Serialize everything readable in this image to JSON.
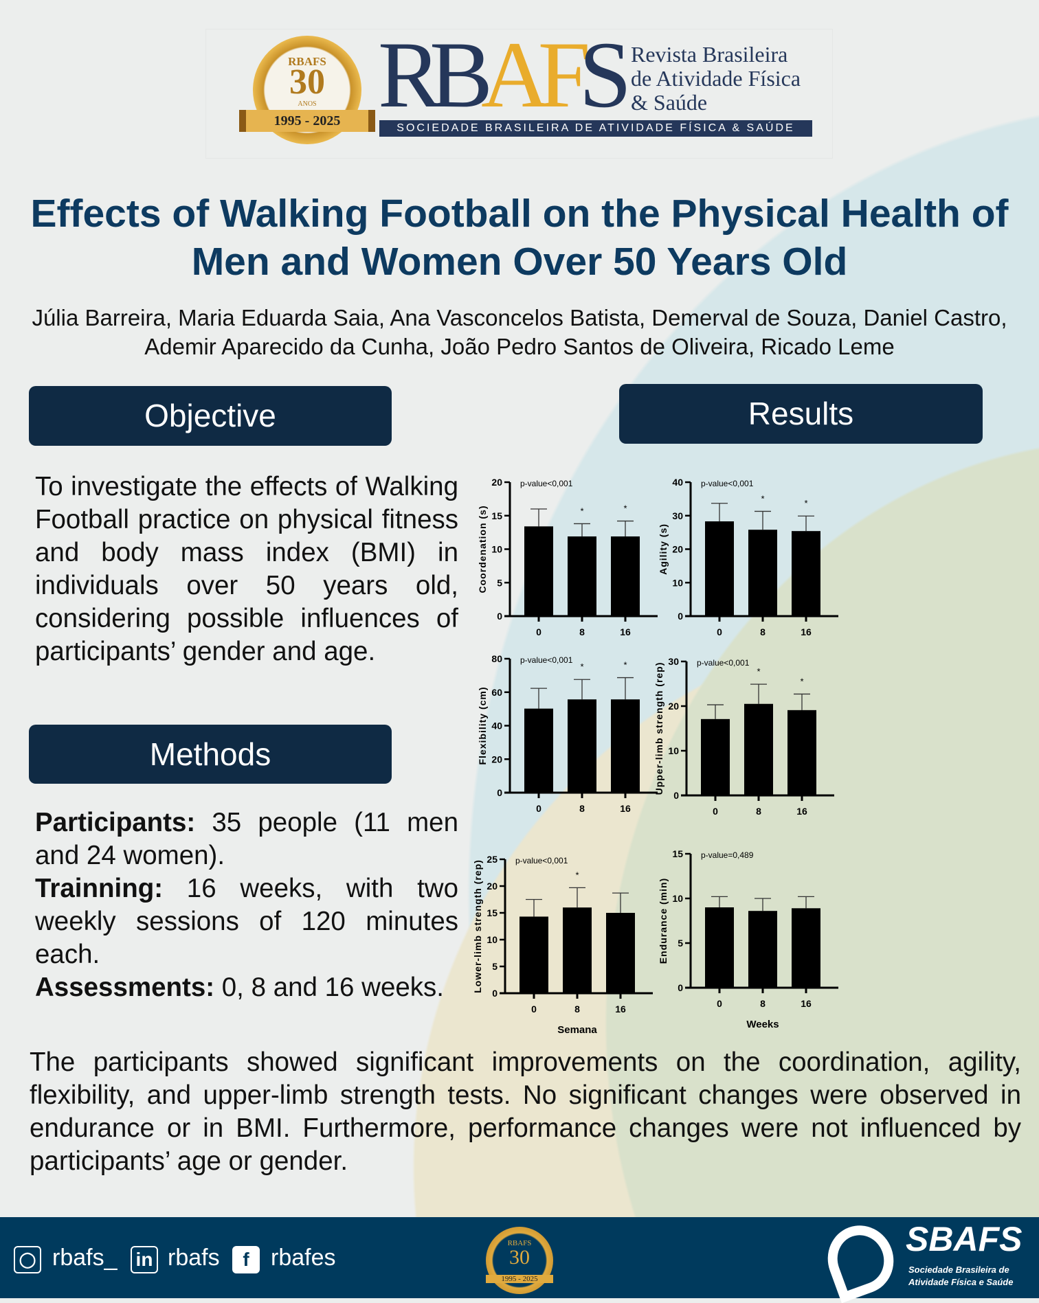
{
  "header": {
    "seal_top": "RBAFS",
    "seal_number": "30",
    "seal_sub": "ANOS",
    "seal_years": "1995 - 2025",
    "brand_r_b": "RB",
    "brand_af": "AF",
    "brand_s": "S",
    "brand_sub_lines": [
      "Revista Brasileira",
      "de Atividade Física",
      "& Saúde"
    ],
    "banner": "SOCIEDADE BRASILEIRA DE ATIVIDADE FÍSICA & SAÚDE"
  },
  "title": "Effects of Walking Football on the Physical Health of Men and Women Over 50 Years Old",
  "authors": "Júlia Barreira, Maria Eduarda Saia, Ana Vasconcelos Batista, Demerval de Souza, Daniel Castro, Ademir Aparecido da Cunha, João Pedro Santos de Oliveira, Ricado Leme",
  "objective": {
    "heading": "Objective",
    "text": "To investigate the effects of Walking Football practice on physical fitness and body mass index (BMI) in individuals over 50 years old, considering possible influences of participants’ gender and age."
  },
  "methods": {
    "heading": "Methods",
    "items": [
      {
        "label": "Participants:",
        "text": " 35 people (11 men and 24 women)."
      },
      {
        "label": "Trainning:",
        "text": " 16 weeks, with two weekly sessions of 120 minutes each."
      },
      {
        "label": "Assessments:",
        "text": " 0, 8 and 16 weeks."
      }
    ]
  },
  "results": {
    "heading": "Results"
  },
  "conclusion": "The participants showed significant improvements on the coordination, agility, flexibility, and upper-limb strength tests. No significant changes were observed in endurance or in BMI. Furthermore, performance changes were not influenced by participants’ age or gender.",
  "chart_data": [
    {
      "type": "bar",
      "ylabel": "Coordenation (s)",
      "xlabel": "",
      "annotation": "p-value<0,001",
      "categories": [
        "0",
        "8",
        "16"
      ],
      "values": [
        13.4,
        11.9,
        11.9
      ],
      "error_upper": [
        16.0,
        13.8,
        14.2
      ],
      "significant": [
        false,
        true,
        true
      ],
      "ylim": [
        0,
        20
      ],
      "yticks": [
        0,
        5,
        10,
        15,
        20
      ]
    },
    {
      "type": "bar",
      "ylabel": "Agility (s)",
      "xlabel": "",
      "annotation": "p-value<0,001",
      "categories": [
        "0",
        "8",
        "16"
      ],
      "values": [
        28.3,
        25.8,
        25.4
      ],
      "error_upper": [
        33.7,
        31.3,
        29.9
      ],
      "significant": [
        false,
        true,
        true
      ],
      "ylim": [
        0,
        40
      ],
      "yticks": [
        0,
        10,
        20,
        30,
        40
      ]
    },
    {
      "type": "bar",
      "ylabel": "Flexibility (cm)",
      "xlabel": "",
      "annotation": "p-value<0,001",
      "categories": [
        "0",
        "8",
        "16"
      ],
      "values": [
        50.2,
        55.7,
        55.7
      ],
      "error_upper": [
        62.3,
        67.6,
        68.7
      ],
      "significant": [
        false,
        true,
        true
      ],
      "ylim": [
        0,
        80
      ],
      "yticks": [
        0,
        20,
        40,
        60,
        80
      ]
    },
    {
      "type": "bar",
      "ylabel": "Upper-limb strength (rep)",
      "xlabel": "",
      "annotation": "p-value<0,001",
      "categories": [
        "0",
        "8",
        "16"
      ],
      "values": [
        17.1,
        20.5,
        19.1
      ],
      "error_upper": [
        20.3,
        24.9,
        22.7
      ],
      "significant": [
        false,
        true,
        true
      ],
      "ylim": [
        0,
        30
      ],
      "yticks": [
        0,
        10,
        20,
        30
      ]
    },
    {
      "type": "bar",
      "ylabel": "Lower-limb strength (rep)",
      "xlabel": "Semana",
      "annotation": "p-value<0,001",
      "categories": [
        "0",
        "8",
        "16"
      ],
      "values": [
        14.3,
        16.0,
        15.0
      ],
      "error_upper": [
        17.5,
        19.7,
        18.7
      ],
      "significant": [
        false,
        true,
        false
      ],
      "ylim": [
        0,
        25
      ],
      "yticks": [
        0,
        5,
        10,
        15,
        20,
        25
      ]
    },
    {
      "type": "bar",
      "ylabel": "Endurance (min)",
      "xlabel": "Weeks",
      "annotation": "p-value=0,489",
      "categories": [
        "0",
        "8",
        "16"
      ],
      "values": [
        9.0,
        8.6,
        8.9
      ],
      "error_upper": [
        10.2,
        10.0,
        10.2
      ],
      "significant": [
        false,
        false,
        false
      ],
      "ylim": [
        0,
        15
      ],
      "yticks": [
        0,
        5,
        10,
        15
      ]
    }
  ],
  "footer": {
    "instagram": "rbafs_",
    "linkedin": "rbafs",
    "facebook": "rbafes",
    "seal_top": "RBAFS",
    "seal_number": "30",
    "seal_years": "1995 - 2025",
    "sbafs": "SBAFS",
    "sbafs_sub_lines": [
      "Sociedade Brasileira de",
      "Atividade Física e Saúde"
    ]
  }
}
